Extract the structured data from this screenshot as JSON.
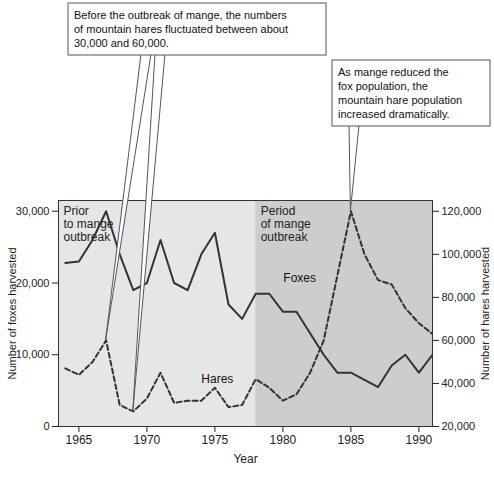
{
  "chart_data": {
    "type": "line",
    "x_label": "Year",
    "y_label": "Number of foxes harvested",
    "y2_label": "Number of hares harvested",
    "x": [
      1964,
      1965,
      1966,
      1967,
      1968,
      1969,
      1970,
      1971,
      1972,
      1973,
      1974,
      1975,
      1976,
      1977,
      1978,
      1979,
      1980,
      1981,
      1982,
      1983,
      1984,
      1985,
      1986,
      1987,
      1988,
      1989,
      1990,
      1991
    ],
    "series": [
      {
        "name": "Foxes",
        "color": "#333333",
        "line_style": "solid",
        "values": [
          22800,
          23000,
          26000,
          30000,
          24000,
          19000,
          20000,
          26000,
          20000,
          19000,
          24000,
          27000,
          17000,
          15000,
          18500,
          18500,
          16000,
          16000,
          13000,
          10000,
          7500,
          7500,
          6500,
          5500,
          8500,
          10000,
          7500,
          10000
        ]
      },
      {
        "name": "Hares",
        "color": "#333333",
        "line_style": "dashed",
        "axis": "y2",
        "values": [
          47000,
          44000,
          50000,
          60000,
          30000,
          27000,
          33000,
          45000,
          31000,
          32000,
          32000,
          38000,
          29000,
          30000,
          42000,
          38000,
          32000,
          35000,
          45000,
          60000,
          90000,
          120000,
          100000,
          88000,
          86000,
          75000,
          68000,
          63000
        ]
      }
    ],
    "xlim": [
      1963.5,
      1991
    ],
    "xticks": [
      1965,
      1970,
      1975,
      1980,
      1985,
      1990
    ],
    "ylim": [
      0,
      31500
    ],
    "yticks": [
      0,
      {
        "value": 10000,
        "label": "10,000"
      },
      {
        "value": 20000,
        "label": "20,000"
      },
      {
        "value": 30000,
        "label": "30,000"
      }
    ],
    "y2lim": [
      20000,
      125000
    ],
    "y2ticks": [
      {
        "value": 20000,
        "label": "20,000"
      },
      {
        "value": 40000,
        "label": "40,000"
      },
      {
        "value": 60000,
        "label": "60,000"
      },
      {
        "value": 80000,
        "label": "80,000"
      },
      {
        "value": 100000,
        "label": "100,000"
      },
      {
        "value": 120000,
        "label": "120,000"
      }
    ],
    "regions": [
      {
        "lines": [
          "Prior",
          "to mange",
          "outbreak"
        ],
        "from": 1963.5,
        "to": 1978,
        "color": "#e6e6e6"
      },
      {
        "lines": [
          "Period",
          "of mange",
          "outbreak"
        ],
        "from": 1978,
        "to": 1991,
        "color": "#cdcdcd"
      }
    ],
    "annotations": [
      {
        "lines": [
          "Before the outbreak of mange, the numbers",
          "of mountain hares fluctuated between about",
          "30,000 and 60,000."
        ],
        "axis": "y2",
        "points": [
          {
            "x": 1967,
            "y": 60000
          },
          {
            "x": 1969,
            "y": 27000
          }
        ]
      },
      {
        "lines": [
          "As mange reduced the",
          "fox population, the",
          "mountain hare population",
          "increased dramatically."
        ],
        "axis": "y2",
        "points": [
          {
            "x": 1985,
            "y": 120000
          }
        ]
      }
    ]
  }
}
